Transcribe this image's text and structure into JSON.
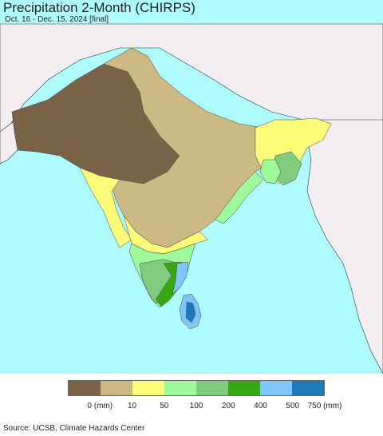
{
  "title": "Precipitation 2-Month (CHIRPS)",
  "subtitle": "Oct. 16 - Dec. 15, 2024 [final]",
  "legend": {
    "colors": [
      "#7b6347",
      "#cdb983",
      "#fdfd7a",
      "#9dfb9c",
      "#7fcc7d",
      "#37a814",
      "#80c6fb",
      "#1f78b8"
    ],
    "ticks": [
      "0 (mm)",
      "10",
      "50",
      "100",
      "200",
      "400",
      "500",
      "750 (mm)"
    ]
  },
  "source": "Source: UCSB, Climate Hazards Center",
  "map_colors": {
    "ocean": "#aefcff",
    "land_outside": "#f2eef2",
    "very_dry": "#7b6347",
    "dry": "#cdb983",
    "low": "#fdfd7a",
    "moderate": "#9dfb9c",
    "mid": "#7fcc7d",
    "high": "#37a814",
    "very_high": "#80c6fb",
    "extreme": "#1f78b8"
  }
}
